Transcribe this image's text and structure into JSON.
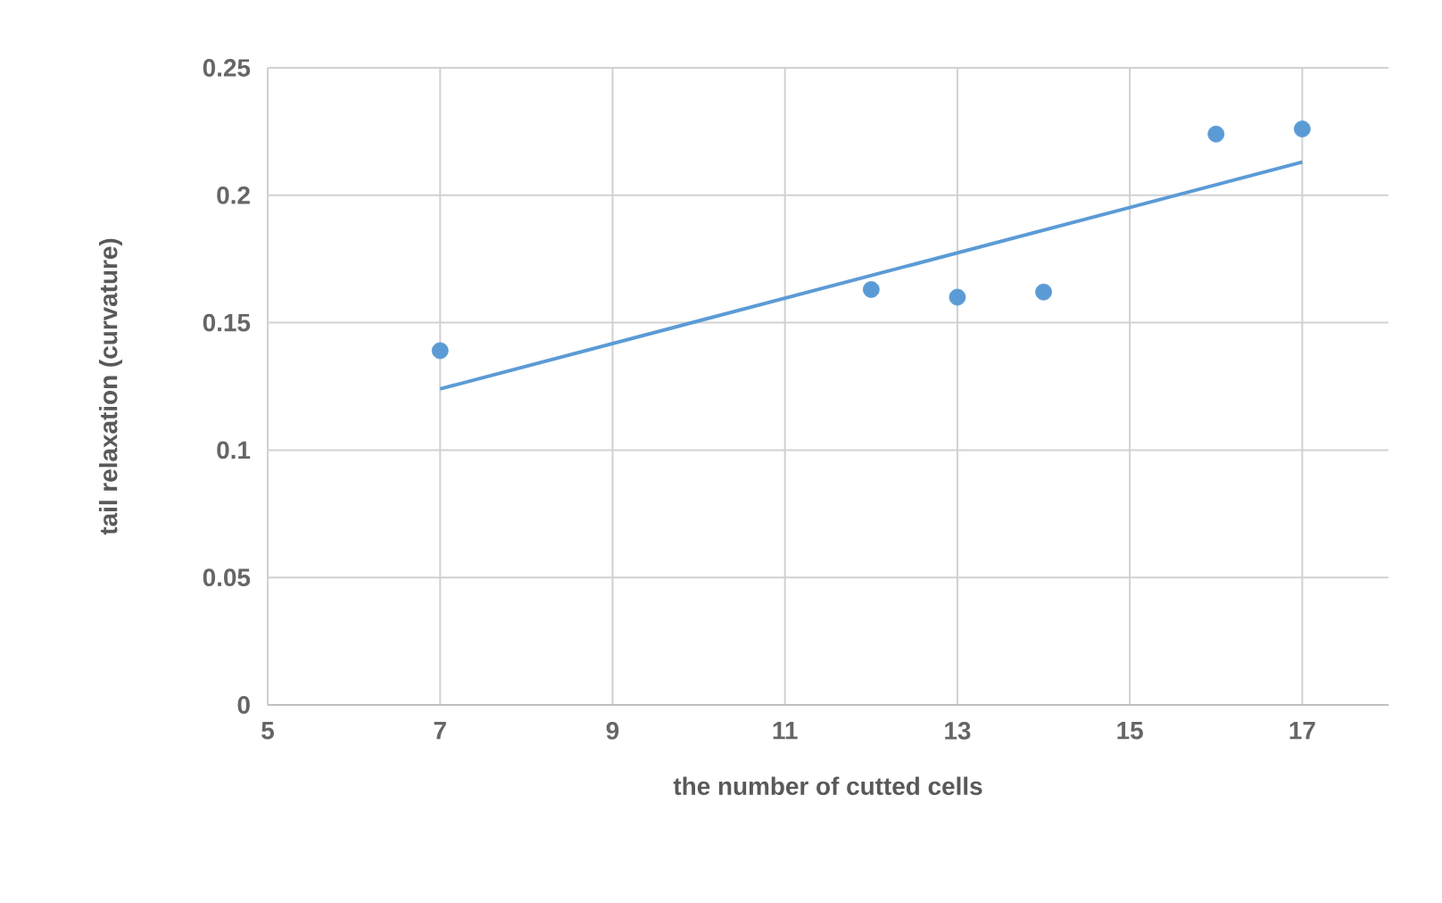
{
  "chart_data": {
    "type": "scatter",
    "xlabel": "the number of cutted cells",
    "ylabel": "tail relaxation (curvature)",
    "xlim": [
      5,
      18
    ],
    "xticks": [
      5,
      7,
      9,
      11,
      13,
      15,
      17
    ],
    "ylim": [
      0,
      0.25
    ],
    "yticks": [
      0,
      0.05,
      0.1,
      0.15,
      0.2,
      0.25
    ],
    "grid": true,
    "series": [
      {
        "color": "#5b9bd5",
        "marker": "circle",
        "x": [
          7,
          12,
          13,
          14,
          16,
          17
        ],
        "values": [
          0.139,
          0.163,
          0.16,
          0.162,
          0.224,
          0.226
        ]
      },
      {
        "type": "line",
        "color": "#5b9bd5",
        "marker": "none",
        "x": [
          7,
          17
        ],
        "values": [
          0.124,
          0.213
        ]
      }
    ]
  }
}
